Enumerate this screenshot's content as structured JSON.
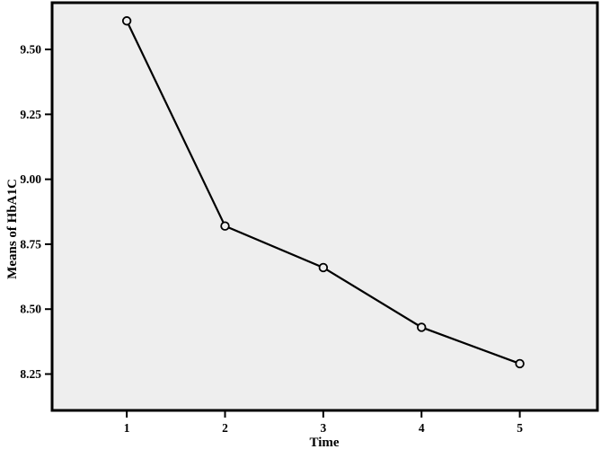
{
  "chart_data": {
    "type": "line",
    "x": [
      1,
      2,
      3,
      4,
      5
    ],
    "values": [
      9.61,
      8.82,
      8.66,
      8.43,
      8.29
    ],
    "title": "",
    "xlabel": "Time",
    "ylabel": "Means of HbA1C",
    "xticks": [
      1,
      2,
      3,
      4,
      5
    ],
    "yticks": [
      8.25,
      8.5,
      8.75,
      9.0,
      9.25,
      9.5
    ],
    "ytick_decimals": 2,
    "xlim": [
      0.24,
      5.79
    ],
    "ylim": [
      8.11,
      9.68
    ],
    "grid": false,
    "legend": "none",
    "marker": "open-circle",
    "colors": {
      "line": "#000000",
      "marker_stroke": "#000000",
      "marker_fill": "#eeeeee",
      "plot_background": "#eeeeee",
      "frame": "#000000",
      "page_background": "#ffffff",
      "text": "#000000"
    }
  }
}
